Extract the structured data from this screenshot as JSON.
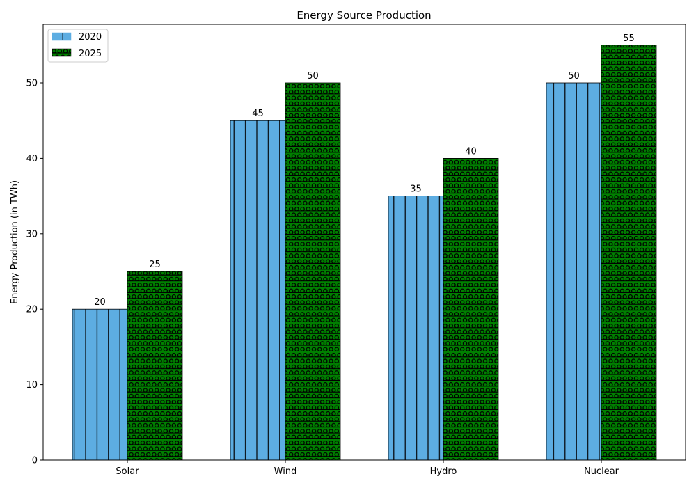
{
  "chart_data": {
    "type": "bar",
    "title": "Energy Source Production",
    "xlabel": "",
    "ylabel": "Energy Production (in TWh)",
    "categories": [
      "Solar",
      "Wind",
      "Hydro",
      "Nuclear"
    ],
    "series": [
      {
        "name": "2020",
        "values": [
          20,
          45,
          35,
          50
        ],
        "color": "#5DADE2",
        "hatch": "vertical-lines"
      },
      {
        "name": "2025",
        "values": [
          25,
          50,
          40,
          55
        ],
        "color": "#008000",
        "hatch": "horizontal-lines-and-circles"
      }
    ],
    "ylim": [
      0,
      57.75
    ],
    "yticks": [
      0,
      10,
      20,
      30,
      40,
      50
    ],
    "grid": false,
    "legend": "top-left",
    "data_labels": true
  }
}
